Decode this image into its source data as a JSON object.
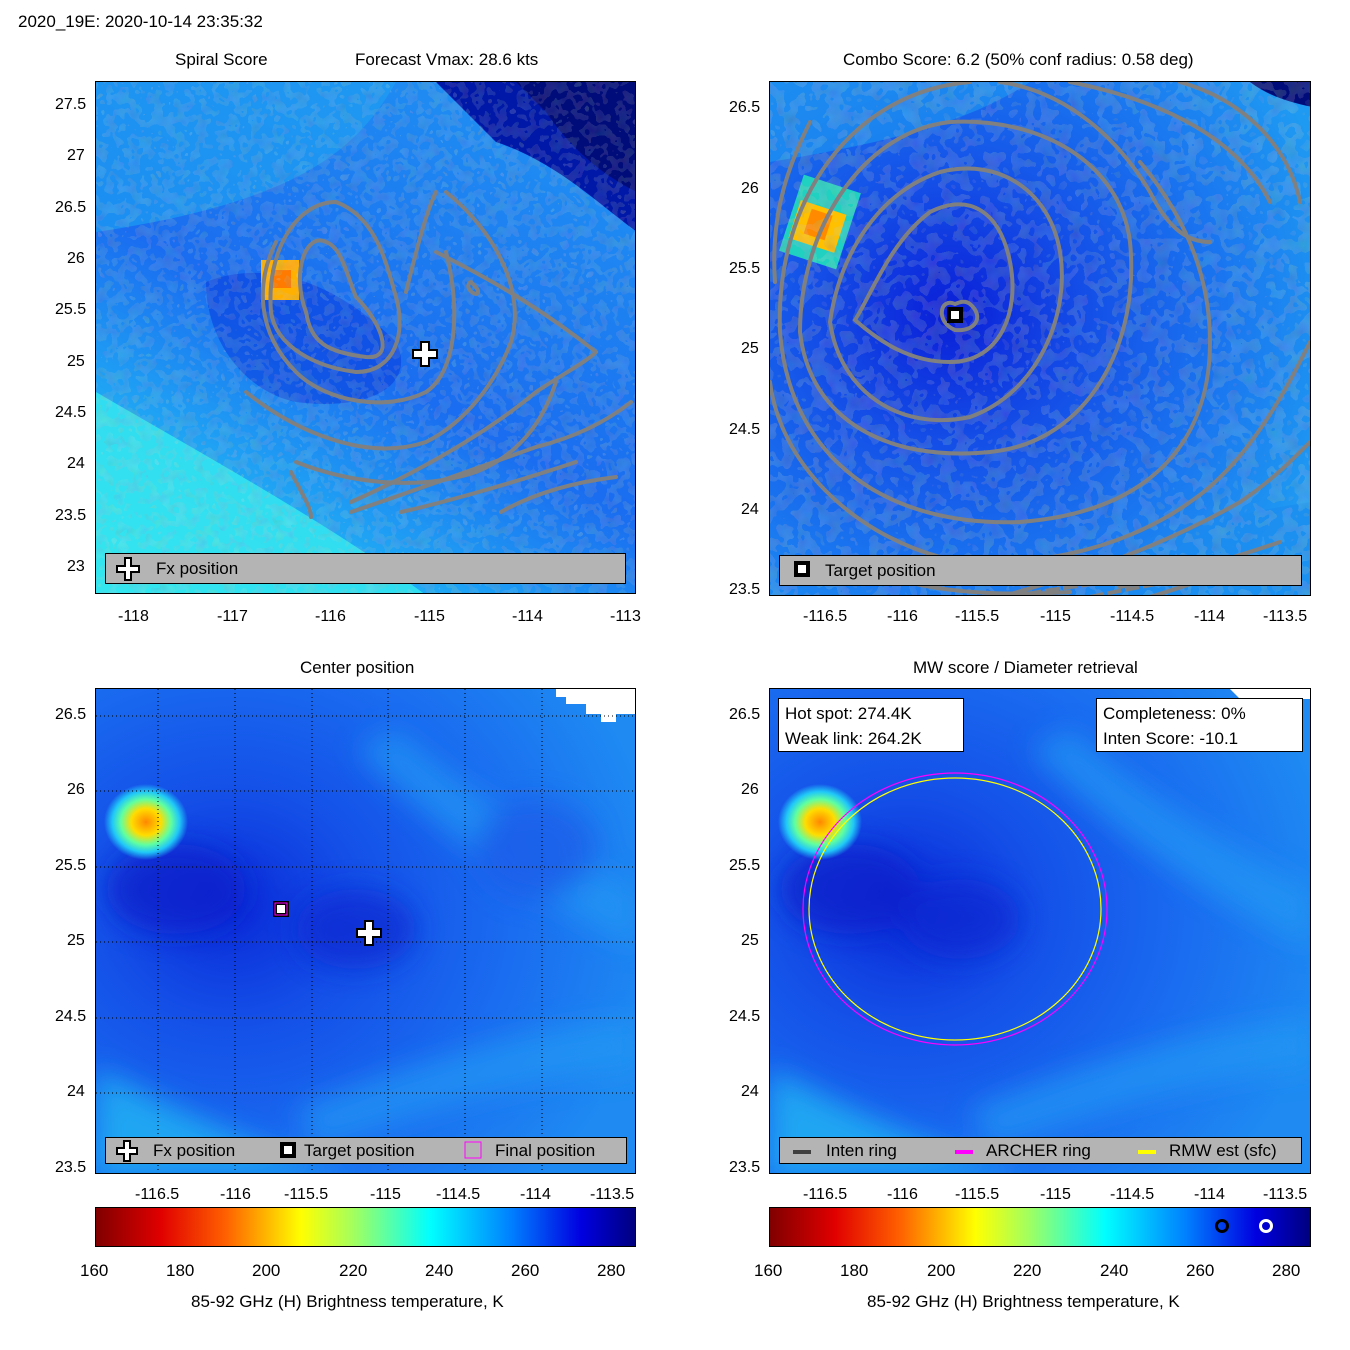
{
  "header": {
    "storm_time": "2020_19E: 2020-10-14 23:35:32"
  },
  "panels": {
    "spiral": {
      "title_left": "Spiral Score",
      "title_right": "Forecast Vmax: 28.6 kts",
      "legend": "Fx position",
      "xticks": [
        "-118",
        "-117",
        "-116",
        "-115",
        "-114",
        "-113"
      ],
      "yticks": [
        "27.5",
        "27",
        "26.5",
        "26",
        "25.5",
        "25",
        "24.5",
        "24",
        "23.5",
        "23"
      ]
    },
    "combo": {
      "title": "Combo Score: 6.2  (50% conf radius: 0.58 deg)",
      "legend": "Target position",
      "xticks": [
        "-116.5",
        "-116",
        "-115.5",
        "-115",
        "-114.5",
        "-114",
        "-113.5"
      ],
      "yticks": [
        "26.5",
        "26",
        "25.5",
        "25",
        "24.5",
        "24",
        "23.5"
      ]
    },
    "center": {
      "title": "Center position",
      "legend": {
        "fx": "Fx position",
        "target": "Target position",
        "final": "Final position"
      },
      "xticks": [
        "-116.5",
        "-116",
        "-115.5",
        "-115",
        "-114.5",
        "-114",
        "-113.5"
      ],
      "yticks": [
        "26.5",
        "26",
        "25.5",
        "25",
        "24.5",
        "24",
        "23.5"
      ]
    },
    "mw": {
      "title": "MW score / Diameter retrieval",
      "hot_spot": "Hot spot: 274.4K",
      "weak_link": "Weak link: 264.2K",
      "completeness": "Completeness: 0%",
      "inten_score": "Inten Score: -10.1",
      "legend": {
        "inten": "Inten ring",
        "archer": "ARCHER ring",
        "rmw": "RMW est (sfc)"
      },
      "xticks": [
        "-116.5",
        "-116",
        "-115.5",
        "-115",
        "-114.5",
        "-114",
        "-113.5"
      ],
      "yticks": [
        "26.5",
        "26",
        "25.5",
        "25",
        "24.5",
        "24",
        "23.5"
      ]
    }
  },
  "colorbar": {
    "label": "85-92 GHz (H) Brightness temperature, K",
    "ticks": [
      "160",
      "180",
      "200",
      "220",
      "240",
      "260",
      "280"
    ],
    "range": [
      160,
      285
    ]
  },
  "colors": {
    "contour": "#808080",
    "legend_bg": "#b4b4b4",
    "archer": "#ff00ff",
    "rmw": "#ffff00"
  },
  "chart_data": [
    {
      "type": "heatmap",
      "title": "Spiral Score",
      "subtitle": "Forecast Vmax: 28.6 kts",
      "xlim": [
        -118.4,
        -112.9
      ],
      "ylim": [
        22.7,
        27.8
      ],
      "markers": [
        {
          "name": "Fx position",
          "x": -115.15,
          "y": 25.08
        }
      ]
    },
    {
      "type": "heatmap",
      "title": "Combo Score: 6.2  (50% conf radius: 0.58 deg)",
      "xlim": [
        -116.9,
        -113.4
      ],
      "ylim": [
        23.45,
        26.7
      ],
      "markers": [
        {
          "name": "Target position",
          "x": -115.67,
          "y": 25.23
        }
      ]
    },
    {
      "type": "heatmap",
      "title": "Center position",
      "xlim": [
        -116.9,
        -113.4
      ],
      "ylim": [
        23.45,
        26.7
      ],
      "markers": [
        {
          "name": "Fx position",
          "x": -115.1,
          "y": 25.07
        },
        {
          "name": "Target position",
          "x": -115.67,
          "y": 25.22
        },
        {
          "name": "Final position",
          "x": -115.67,
          "y": 25.22
        }
      ]
    },
    {
      "type": "heatmap",
      "title": "MW score / Diameter retrieval",
      "xlim": [
        -116.9,
        -113.4
      ],
      "ylim": [
        23.45,
        26.7
      ],
      "annotations": [
        "Hot spot: 274.4K",
        "Weak link: 264.2K",
        "Completeness: 0%",
        "Inten Score: -10.1"
      ],
      "rings": [
        {
          "name": "ARCHER ring",
          "center_x": -115.67,
          "center_y": 25.22,
          "radius_deg": 0.97
        },
        {
          "name": "RMW est (sfc)",
          "center_x": -115.67,
          "center_y": 25.22,
          "radius_deg": 0.94
        }
      ],
      "colorbar_markers": [
        {
          "name": "weak-link-marker",
          "value": 264.2
        },
        {
          "name": "hot-spot-marker",
          "value": 274.4
        }
      ]
    }
  ]
}
